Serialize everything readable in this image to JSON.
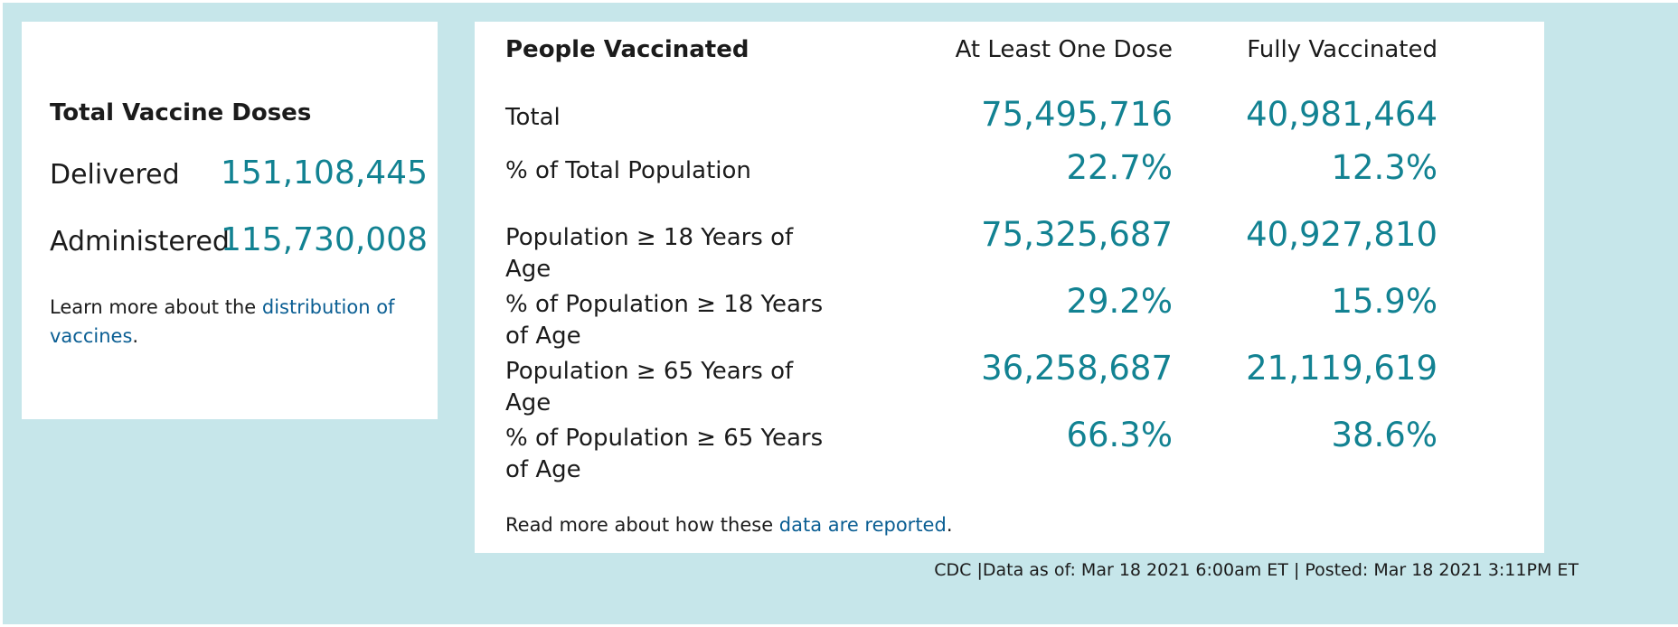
{
  "doses": {
    "title": "Total Vaccine Doses",
    "delivered_label": "Delivered",
    "delivered_value": "151,108,445",
    "administered_label": "Administered",
    "administered_value": "115,730,008",
    "note_prefix": "Learn more about the ",
    "note_link": "distribution of vaccines",
    "note_suffix": "."
  },
  "people": {
    "title": "People Vaccinated",
    "col_one": "At Least One Dose",
    "col_two": "Fully Vaccinated",
    "rows": [
      {
        "label": "Total",
        "one": "75,495,716",
        "two": "40,981,464"
      },
      {
        "label": "% of Total Population",
        "one": "22.7%",
        "two": "12.3%"
      },
      {
        "label": "Population ≥ 18 Years of Age",
        "one": "75,325,687",
        "two": "40,927,810"
      },
      {
        "label": "% of Population ≥ 18 Years of Age",
        "one": "29.2%",
        "two": "15.9%"
      },
      {
        "label": "Population ≥ 65 Years of Age",
        "one": "36,258,687",
        "two": "21,119,619"
      },
      {
        "label": "% of Population ≥ 65 Years of Age",
        "one": "66.3%",
        "two": "38.6%"
      }
    ],
    "note_prefix": "Read more about how these ",
    "note_link": "data are reported",
    "note_suffix": "."
  },
  "footer": "CDC |Data as of: Mar 18 2021 6:00am ET | Posted: Mar 18 2021 3:11PM ET",
  "colors": {
    "background": "#c6e6ea",
    "value": "#128292",
    "link": "#0a5e93"
  }
}
